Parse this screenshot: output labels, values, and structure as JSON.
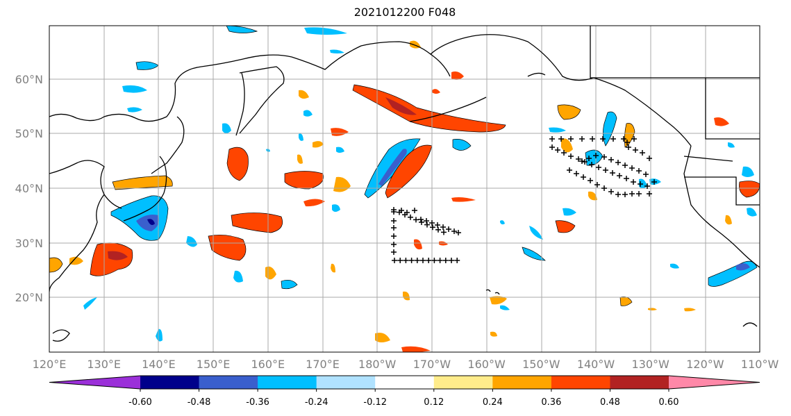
{
  "title": "2021012200 F048",
  "lat_labels": [
    "60°N",
    "50°N",
    "40°N",
    "30°N",
    "20°N"
  ],
  "lon_labels": [
    "120°E",
    "130°E",
    "140°E",
    "150°E",
    "160°E",
    "170°E",
    "180°W",
    "170°W",
    "160°W",
    "150°W",
    "140°W",
    "130°W",
    "120°W",
    "110°W"
  ],
  "colorbar": {
    "colors": [
      "#9b30d9",
      "#00008b",
      "#3a5fcd",
      "#00bfff",
      "#b0e2ff",
      "#ffffff",
      "#ffec8b",
      "#ffa500",
      "#ff4500",
      "#b22222",
      "#ff88a8"
    ],
    "tick_labels": [
      "-0.60",
      "-0.48",
      "-0.36",
      "-0.24",
      "-0.12",
      "0.12",
      "0.24",
      "0.36",
      "0.48",
      "0.60"
    ]
  },
  "colors": {
    "grid": "#aaaaaa",
    "coast": "#000000",
    "marker": "#000000"
  }
}
